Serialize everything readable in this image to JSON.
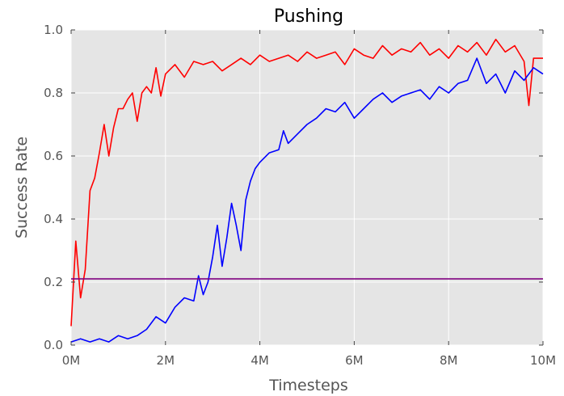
{
  "chart_data": {
    "type": "line",
    "title": "Pushing",
    "xlabel": "Timesteps",
    "ylabel": "Success Rate",
    "xlim": [
      0,
      10000000
    ],
    "ylim": [
      0,
      1.0
    ],
    "x_ticks": [
      0,
      2000000,
      4000000,
      6000000,
      8000000,
      10000000
    ],
    "x_tick_labels": [
      "0M",
      "2M",
      "4M",
      "6M",
      "8M",
      "10M"
    ],
    "y_ticks": [
      0.0,
      0.2,
      0.4,
      0.6,
      0.8,
      1.0
    ],
    "y_tick_labels": [
      "0.0",
      "0.2",
      "0.4",
      "0.6",
      "0.8",
      "1.0"
    ],
    "grid": true,
    "background": "#e5e5e5",
    "series": [
      {
        "color": "#ff0000",
        "x": [
          0,
          100000,
          200000,
          300000,
          400000,
          500000,
          600000,
          700000,
          800000,
          900000,
          1000000,
          1100000,
          1200000,
          1300000,
          1400000,
          1500000,
          1600000,
          1700000,
          1800000,
          1900000,
          2000000,
          2200000,
          2400000,
          2600000,
          2800000,
          3000000,
          3200000,
          3400000,
          3600000,
          3800000,
          4000000,
          4200000,
          4400000,
          4600000,
          4800000,
          5000000,
          5200000,
          5400000,
          5600000,
          5800000,
          6000000,
          6200000,
          6400000,
          6600000,
          6800000,
          7000000,
          7200000,
          7400000,
          7600000,
          7800000,
          8000000,
          8200000,
          8400000,
          8600000,
          8800000,
          9000000,
          9200000,
          9400000,
          9600000,
          9700000,
          9800000,
          10000000
        ],
        "y": [
          0.06,
          0.33,
          0.15,
          0.24,
          0.49,
          0.53,
          0.61,
          0.7,
          0.6,
          0.69,
          0.75,
          0.75,
          0.78,
          0.8,
          0.71,
          0.8,
          0.82,
          0.8,
          0.88,
          0.79,
          0.86,
          0.89,
          0.85,
          0.9,
          0.89,
          0.9,
          0.87,
          0.89,
          0.91,
          0.89,
          0.92,
          0.9,
          0.91,
          0.92,
          0.9,
          0.93,
          0.91,
          0.92,
          0.93,
          0.89,
          0.94,
          0.92,
          0.91,
          0.95,
          0.92,
          0.94,
          0.93,
          0.96,
          0.92,
          0.94,
          0.91,
          0.95,
          0.93,
          0.96,
          0.92,
          0.97,
          0.93,
          0.95,
          0.9,
          0.76,
          0.91,
          0.91
        ]
      },
      {
        "color": "#0000ff",
        "x": [
          0,
          200000,
          400000,
          600000,
          800000,
          1000000,
          1200000,
          1400000,
          1600000,
          1800000,
          2000000,
          2200000,
          2400000,
          2600000,
          2700000,
          2800000,
          2900000,
          3000000,
          3100000,
          3200000,
          3300000,
          3400000,
          3500000,
          3600000,
          3700000,
          3800000,
          3900000,
          4000000,
          4200000,
          4400000,
          4500000,
          4600000,
          4800000,
          5000000,
          5200000,
          5400000,
          5600000,
          5800000,
          6000000,
          6200000,
          6400000,
          6600000,
          6800000,
          7000000,
          7200000,
          7400000,
          7600000,
          7800000,
          8000000,
          8200000,
          8400000,
          8600000,
          8800000,
          9000000,
          9200000,
          9400000,
          9600000,
          9800000,
          10000000
        ],
        "y": [
          0.01,
          0.02,
          0.01,
          0.02,
          0.01,
          0.03,
          0.02,
          0.03,
          0.05,
          0.09,
          0.07,
          0.12,
          0.15,
          0.14,
          0.22,
          0.16,
          0.2,
          0.28,
          0.38,
          0.25,
          0.34,
          0.45,
          0.38,
          0.3,
          0.46,
          0.52,
          0.56,
          0.58,
          0.61,
          0.62,
          0.68,
          0.64,
          0.67,
          0.7,
          0.72,
          0.75,
          0.74,
          0.77,
          0.72,
          0.75,
          0.78,
          0.8,
          0.77,
          0.79,
          0.8,
          0.81,
          0.78,
          0.82,
          0.8,
          0.83,
          0.84,
          0.91,
          0.83,
          0.86,
          0.8,
          0.87,
          0.84,
          0.88,
          0.86
        ]
      },
      {
        "color": "#800080",
        "x": [
          0,
          10000000
        ],
        "y": [
          0.21,
          0.21
        ]
      }
    ]
  }
}
